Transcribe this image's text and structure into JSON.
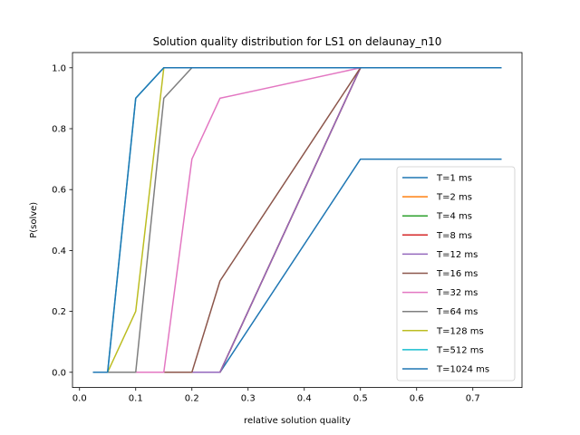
{
  "chart_data": {
    "type": "line",
    "title": "Solution quality distribution for LS1 on delaunay_n10",
    "xlabel": "relative solution quality",
    "ylabel": "P(solve)",
    "xlim": [
      -0.0125,
      0.7875
    ],
    "ylim": [
      -0.05,
      1.05
    ],
    "xticks": [
      0.0,
      0.1,
      0.2,
      0.3,
      0.4,
      0.5,
      0.6,
      0.7
    ],
    "xtick_labels": [
      "0.0",
      "0.1",
      "0.2",
      "0.3",
      "0.4",
      "0.5",
      "0.6",
      "0.7"
    ],
    "yticks": [
      0.0,
      0.2,
      0.4,
      0.6,
      0.8,
      1.0
    ],
    "ytick_labels": [
      "0.0",
      "0.2",
      "0.4",
      "0.6",
      "0.8",
      "1.0"
    ],
    "grid": false,
    "legend_position": "lower right",
    "x": [
      0.025,
      0.05,
      0.1,
      0.15,
      0.2,
      0.25,
      0.5,
      0.75
    ],
    "series": [
      {
        "name": "T=1 ms",
        "color": "#1f77b4",
        "values": [
          0.0,
          0.0,
          0.0,
          0.0,
          0.0,
          0.0,
          0.7,
          0.7
        ]
      },
      {
        "name": "T=2 ms",
        "color": "#ff7f0e",
        "values": [
          0.0,
          0.0,
          0.0,
          0.0,
          0.0,
          0.0,
          1.0,
          1.0
        ]
      },
      {
        "name": "T=4 ms",
        "color": "#2ca02c",
        "values": [
          0.0,
          0.0,
          0.0,
          0.0,
          0.0,
          0.0,
          1.0,
          1.0
        ]
      },
      {
        "name": "T=8 ms",
        "color": "#d62728",
        "values": [
          0.0,
          0.0,
          0.0,
          0.0,
          0.0,
          0.0,
          1.0,
          1.0
        ]
      },
      {
        "name": "T=12 ms",
        "color": "#9467bd",
        "values": [
          0.0,
          0.0,
          0.0,
          0.0,
          0.0,
          0.0,
          1.0,
          1.0
        ]
      },
      {
        "name": "T=16 ms",
        "color": "#8c564b",
        "values": [
          0.0,
          0.0,
          0.0,
          0.0,
          0.0,
          0.3,
          1.0,
          1.0
        ]
      },
      {
        "name": "T=32 ms",
        "color": "#e377c2",
        "values": [
          0.0,
          0.0,
          0.0,
          0.0,
          0.7,
          0.9,
          1.0,
          1.0
        ]
      },
      {
        "name": "T=64 ms",
        "color": "#7f7f7f",
        "values": [
          0.0,
          0.0,
          0.0,
          0.9,
          1.0,
          1.0,
          1.0,
          1.0
        ]
      },
      {
        "name": "T=128 ms",
        "color": "#bcbd22",
        "values": [
          0.0,
          0.0,
          0.2,
          1.0,
          1.0,
          1.0,
          1.0,
          1.0
        ]
      },
      {
        "name": "T=512 ms",
        "color": "#17becf",
        "values": [
          0.0,
          0.0,
          0.9,
          1.0,
          1.0,
          1.0,
          1.0,
          1.0
        ]
      },
      {
        "name": "T=1024 ms",
        "color": "#1f77b4",
        "values": [
          0.0,
          0.0,
          0.9,
          1.0,
          1.0,
          1.0,
          1.0,
          1.0
        ]
      }
    ]
  }
}
